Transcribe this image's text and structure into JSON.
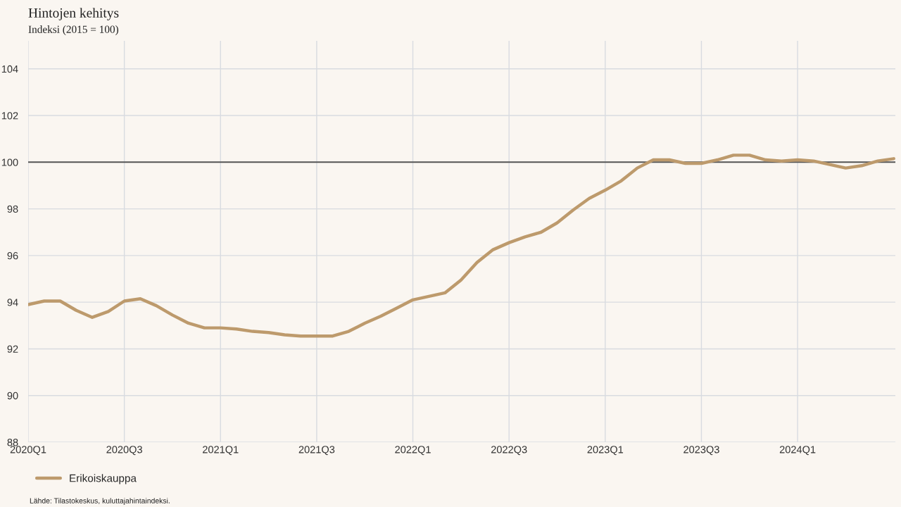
{
  "chart_data": {
    "type": "line",
    "title": "Hintojen kehitys",
    "subtitle": "Indeksi (2015 = 100)",
    "categories": [
      "2020Q1",
      null,
      null,
      null,
      null,
      null,
      "2020Q3",
      null,
      null,
      null,
      null,
      null,
      "2021Q1",
      null,
      null,
      null,
      null,
      null,
      "2021Q3",
      null,
      null,
      null,
      null,
      null,
      "2022Q1",
      null,
      null,
      null,
      null,
      null,
      "2022Q3",
      null,
      null,
      null,
      null,
      null,
      "2023Q1",
      null,
      null,
      null,
      null,
      null,
      "2023Q3",
      null,
      null,
      null,
      null,
      null,
      "2024Q1",
      null,
      null,
      null,
      null,
      null,
      null
    ],
    "series": [
      {
        "name": "Erikoiskauppa",
        "color": "#bd9a6c",
        "values": [
          93.9,
          94.05,
          94.05,
          93.65,
          93.35,
          93.6,
          94.05,
          94.15,
          93.85,
          93.45,
          93.1,
          92.9,
          92.9,
          92.85,
          92.75,
          92.7,
          92.6,
          92.55,
          92.55,
          92.55,
          92.75,
          93.1,
          93.4,
          93.75,
          94.1,
          94.25,
          94.4,
          94.95,
          95.7,
          96.25,
          96.55,
          96.8,
          97.0,
          97.4,
          97.95,
          98.45,
          98.8,
          99.2,
          99.75,
          100.1,
          100.1,
          99.95,
          99.95,
          100.1,
          100.3,
          100.3,
          100.1,
          100.05,
          100.1,
          100.05,
          99.9,
          99.75,
          99.85,
          100.05,
          100.15
        ]
      }
    ],
    "ylim": [
      88,
      105.2
    ],
    "yticks": [
      88,
      90,
      92,
      94,
      96,
      98,
      100,
      102,
      104
    ],
    "ref_lines": [
      {
        "axis": "y",
        "value": 100,
        "color": "#555555"
      }
    ],
    "grid": true,
    "legend": "bottom left",
    "marker": "none",
    "line_style": "solid",
    "annotations": [
      "Lähde: Tilastokeskus, kuluttajahintaindeksi."
    ]
  }
}
